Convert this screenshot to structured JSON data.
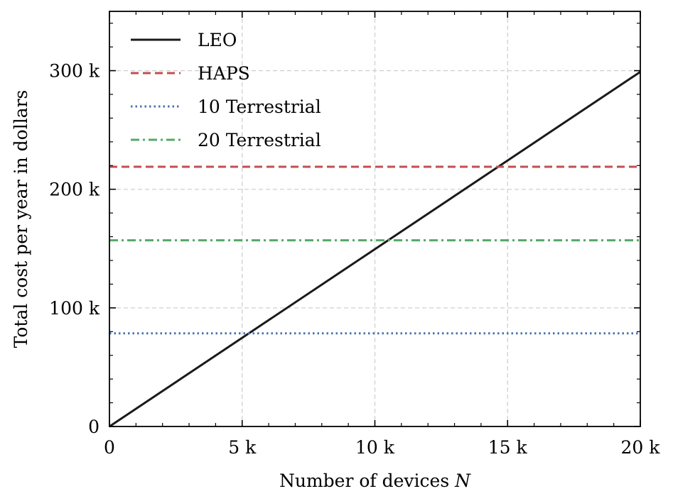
{
  "chart_data": {
    "type": "line",
    "title": "",
    "xlabel": "Number of devices",
    "xlabel_symbol": "N",
    "ylabel": "Total cost per year in dollars",
    "xlim": [
      0,
      20000
    ],
    "ylim": [
      0,
      350000
    ],
    "x_ticks": [
      {
        "value": 0,
        "label": "0"
      },
      {
        "value": 5000,
        "label": "5 k"
      },
      {
        "value": 10000,
        "label": "10 k"
      },
      {
        "value": 15000,
        "label": "15 k"
      },
      {
        "value": 20000,
        "label": "20 k"
      }
    ],
    "y_ticks": [
      {
        "value": 0,
        "label": "0"
      },
      {
        "value": 100000,
        "label": "100 k"
      },
      {
        "value": 200000,
        "label": "200 k"
      },
      {
        "value": 300000,
        "label": "300 k"
      }
    ],
    "x_minor_step": 1000,
    "y_minor_step": 20000,
    "grid": true,
    "legend_position": "top-left",
    "series": [
      {
        "name": "LEO",
        "color": "#1a1a1a",
        "style": "solid",
        "x": [
          0,
          20000
        ],
        "y": [
          0,
          299000
        ]
      },
      {
        "name": "HAPS",
        "color": "#c44e52",
        "style": "dashed",
        "x": [
          0,
          20000
        ],
        "y": [
          219000,
          219000
        ]
      },
      {
        "name": "10 Terrestrial",
        "color": "#4c72b0",
        "style": "dotted",
        "x": [
          0,
          20000
        ],
        "y": [
          78500,
          78500
        ]
      },
      {
        "name": "20 Terrestrial",
        "color": "#55a868",
        "style": "dashdot",
        "x": [
          0,
          20000
        ],
        "y": [
          157000,
          157000
        ]
      }
    ]
  }
}
